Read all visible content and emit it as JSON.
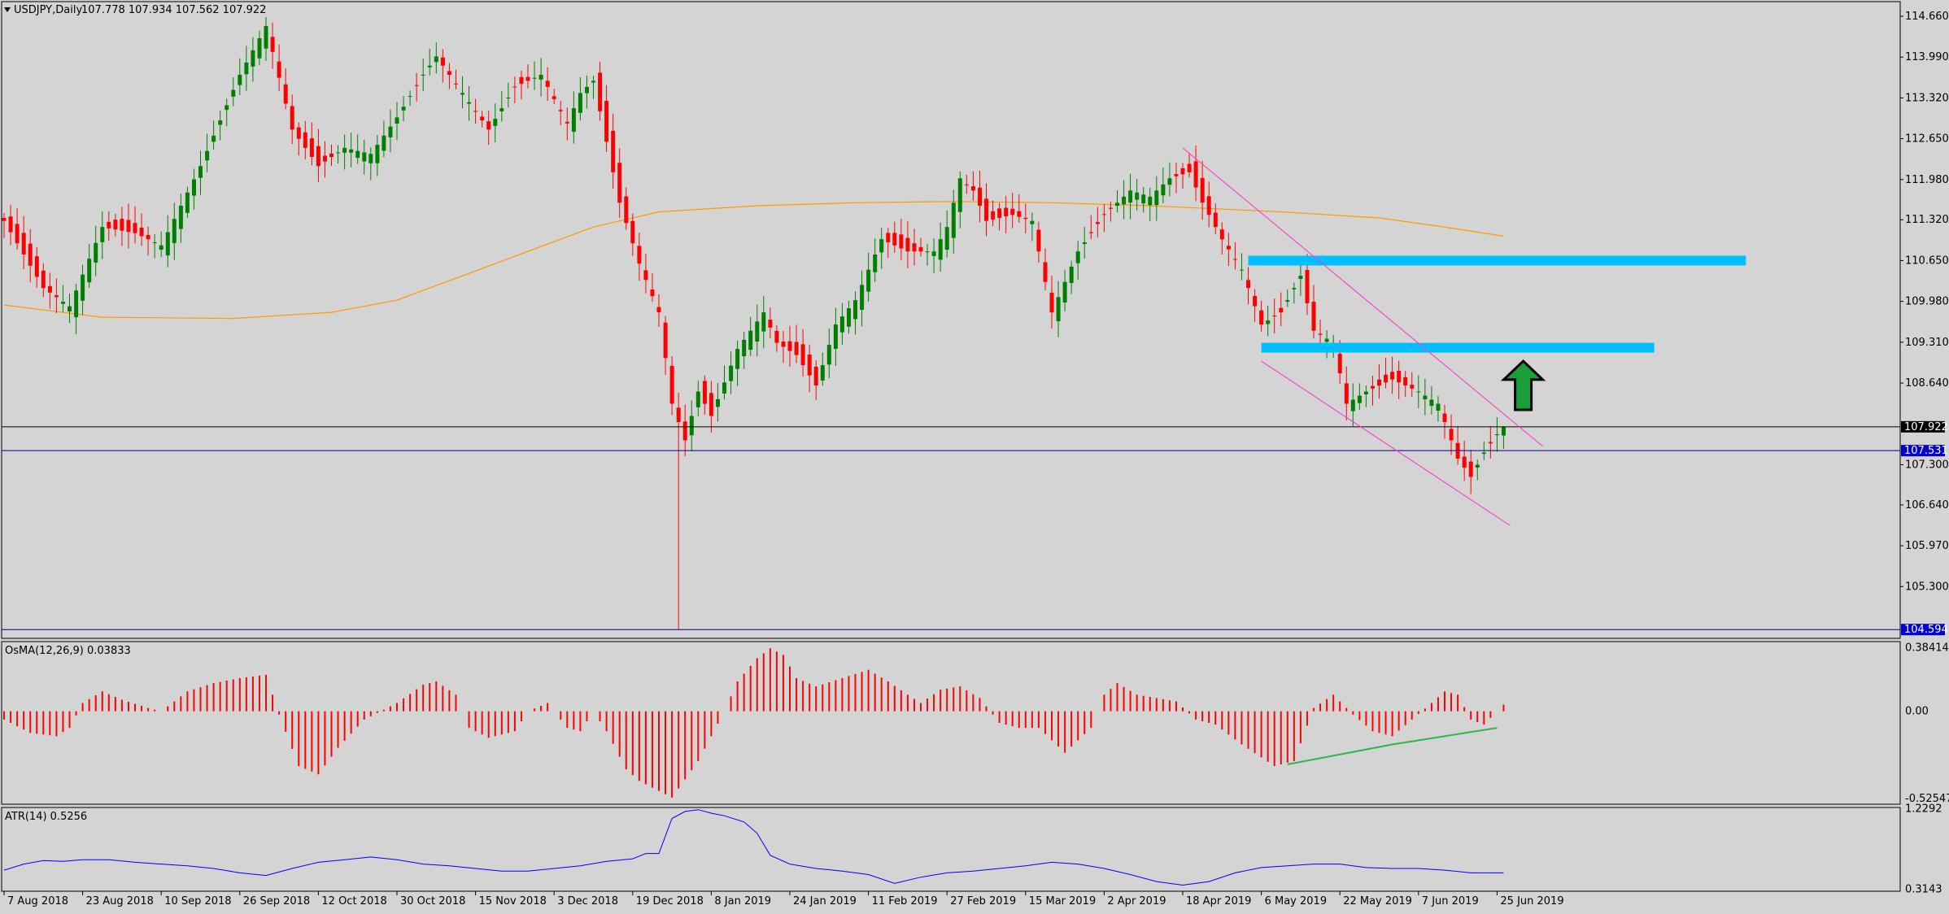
{
  "header": {
    "symbol": "USDJPY,Daily",
    "ohlc": "107.778 107.934 107.562 107.922"
  },
  "colors": {
    "background": "#d4d4d4",
    "bull_candle": "#008000",
    "bear_candle": "#ff0000",
    "ma_line": "#ff9900",
    "channel": "#ff33cc",
    "zone": "#00bfff",
    "arrow": "#1a9e3a",
    "atr_line": "#0000ff",
    "osma_hist": "#ff0000",
    "divergence": "#2db84a",
    "hline_blue": "#000080",
    "hline_black": "#000000"
  },
  "chart_data": [
    {
      "type": "candlestick",
      "title": "USDJPY,Daily",
      "ohlc_label": "107.778 107.934 107.562 107.922",
      "ylim": [
        104.45,
        114.9
      ],
      "y_ticks": [
        "114.660",
        "113.990",
        "113.320",
        "112.650",
        "111.980",
        "111.320",
        "110.650",
        "109.980",
        "109.310",
        "108.640",
        "107.300",
        "106.640",
        "105.970",
        "105.300"
      ],
      "price_tags": [
        {
          "label": "107.922",
          "value": 107.922,
          "style": "current"
        },
        {
          "label": "107.531",
          "value": 107.531,
          "style": "blue"
        },
        {
          "label": "104.594",
          "value": 104.594,
          "style": "blue"
        }
      ],
      "x_ticks": [
        "7 Aug 2018",
        "23 Aug 2018",
        "10 Sep 2018",
        "26 Sep 2018",
        "12 Oct 2018",
        "30 Oct 2018",
        "15 Nov 2018",
        "3 Dec 2018",
        "19 Dec 2018",
        "8 Jan 2019",
        "24 Jan 2019",
        "11 Feb 2019",
        "27 Feb 2019",
        "15 Mar 2019",
        "2 Apr 2019",
        "18 Apr 2019",
        "6 May 2019",
        "22 May 2019",
        "7 Jun 2019",
        "25 Jun 2019"
      ],
      "x_tick_bars": [
        0,
        12,
        24,
        36,
        48,
        60,
        72,
        84,
        96,
        108,
        120,
        132,
        144,
        156,
        168,
        180,
        192,
        204,
        216,
        228
      ],
      "price_path": [
        [
          0,
          111.3
        ],
        [
          6,
          110.2
        ],
        [
          10,
          109.9
        ],
        [
          15,
          111.2
        ],
        [
          20,
          111.1
        ],
        [
          24,
          110.9
        ],
        [
          30,
          112.2
        ],
        [
          36,
          113.7
        ],
        [
          40,
          114.5
        ],
        [
          44,
          112.8
        ],
        [
          48,
          112.2
        ],
        [
          52,
          112.5
        ],
        [
          56,
          112.4
        ],
        [
          60,
          113.0
        ],
        [
          64,
          113.7
        ],
        [
          66,
          114.0
        ],
        [
          70,
          113.4
        ],
        [
          74,
          112.8
        ],
        [
          78,
          113.5
        ],
        [
          82,
          113.7
        ],
        [
          86,
          112.9
        ],
        [
          88,
          113.4
        ],
        [
          90,
          113.6
        ],
        [
          92,
          112.6
        ],
        [
          94,
          111.6
        ],
        [
          97,
          110.6
        ],
        [
          100,
          109.8
        ],
        [
          102,
          108.3
        ],
        [
          104,
          107.7
        ],
        [
          106,
          108.5
        ],
        [
          108,
          108.1
        ],
        [
          112,
          109.2
        ],
        [
          116,
          109.8
        ],
        [
          118,
          109.3
        ],
        [
          121,
          109.1
        ],
        [
          124,
          108.6
        ],
        [
          127,
          109.6
        ],
        [
          130,
          110.0
        ],
        [
          134,
          111.0
        ],
        [
          138,
          110.8
        ],
        [
          142,
          110.8
        ],
        [
          144,
          111.2
        ],
        [
          146,
          112.0
        ],
        [
          148,
          111.8
        ],
        [
          150,
          111.3
        ],
        [
          154,
          111.4
        ],
        [
          157,
          111.3
        ],
        [
          160,
          109.8
        ],
        [
          164,
          110.8
        ],
        [
          168,
          111.4
        ],
        [
          172,
          111.8
        ],
        [
          175,
          111.7
        ],
        [
          178,
          112.0
        ],
        [
          181,
          112.1
        ],
        [
          183,
          111.6
        ],
        [
          186,
          111.0
        ],
        [
          189,
          110.5
        ],
        [
          192,
          109.6
        ],
        [
          195,
          109.8
        ],
        [
          198,
          110.4
        ],
        [
          200,
          109.5
        ],
        [
          203,
          109.3
        ],
        [
          205,
          108.3
        ],
        [
          208,
          108.5
        ],
        [
          212,
          108.7
        ],
        [
          216,
          108.5
        ],
        [
          219,
          108.3
        ],
        [
          222,
          107.4
        ],
        [
          224,
          107.1
        ],
        [
          226,
          107.5
        ],
        [
          228,
          107.8
        ],
        [
          229,
          107.922
        ]
      ],
      "special_wicks": [
        {
          "bar": 103,
          "low": 104.6
        }
      ],
      "ma_line": [
        [
          0,
          109.92
        ],
        [
          15,
          109.72
        ],
        [
          35,
          109.7
        ],
        [
          50,
          109.8
        ],
        [
          60,
          110.0
        ],
        [
          70,
          110.4
        ],
        [
          80,
          110.8
        ],
        [
          90,
          111.2
        ],
        [
          100,
          111.45
        ],
        [
          115,
          111.55
        ],
        [
          130,
          111.6
        ],
        [
          145,
          111.62
        ],
        [
          160,
          111.6
        ],
        [
          175,
          111.55
        ],
        [
          185,
          111.5
        ],
        [
          195,
          111.45
        ],
        [
          210,
          111.35
        ],
        [
          220,
          111.2
        ],
        [
          229,
          111.05
        ]
      ],
      "channel_upper": [
        [
          180,
          112.5
        ],
        [
          235,
          107.6
        ]
      ],
      "channel_lower": [
        [
          192,
          109.0
        ],
        [
          230,
          106.3
        ]
      ],
      "resistance_zones": [
        {
          "from": 190,
          "to": 266,
          "value": 110.65
        },
        {
          "from": 192,
          "to": 252,
          "value": 109.22
        }
      ],
      "hlines": [
        {
          "value": 107.922,
          "style": "black"
        },
        {
          "value": 107.531,
          "style": "blue"
        },
        {
          "value": 104.594,
          "style": "blue"
        }
      ],
      "arrow": {
        "bar": 232,
        "base": 108.2,
        "tip": 109.0,
        "direction": "up"
      }
    },
    {
      "type": "histogram",
      "title": "OsMA(12,26,9) 0.03833",
      "ylim": [
        -0.56,
        0.42
      ],
      "y_ticks": [
        "0.38414",
        "0.00",
        "-0.52547"
      ],
      "osma_path": [
        [
          0,
          -0.05
        ],
        [
          4,
          -0.13
        ],
        [
          8,
          -0.15
        ],
        [
          10,
          -0.1
        ],
        [
          12,
          0.05
        ],
        [
          15,
          0.12
        ],
        [
          18,
          0.07
        ],
        [
          22,
          0.02
        ],
        [
          24,
          0
        ],
        [
          28,
          0.12
        ],
        [
          32,
          0.17
        ],
        [
          36,
          0.2
        ],
        [
          40,
          0.22
        ],
        [
          42,
          -0.02
        ],
        [
          45,
          -0.33
        ],
        [
          48,
          -0.38
        ],
        [
          51,
          -0.22
        ],
        [
          55,
          -0.05
        ],
        [
          60,
          0.05
        ],
        [
          64,
          0.16
        ],
        [
          66,
          0.18
        ],
        [
          69,
          0.1
        ],
        [
          71,
          -0.1
        ],
        [
          74,
          -0.16
        ],
        [
          78,
          -0.12
        ],
        [
          80,
          0
        ],
        [
          83,
          0.05
        ],
        [
          86,
          -0.1
        ],
        [
          88,
          -0.12
        ],
        [
          90,
          0
        ],
        [
          92,
          -0.12
        ],
        [
          95,
          -0.35
        ],
        [
          97,
          -0.42
        ],
        [
          102,
          -0.52
        ],
        [
          106,
          -0.3
        ],
        [
          110,
          0
        ],
        [
          112,
          0.18
        ],
        [
          115,
          0.32
        ],
        [
          117,
          0.38
        ],
        [
          119,
          0.34
        ],
        [
          121,
          0.2
        ],
        [
          124,
          0.15
        ],
        [
          128,
          0.2
        ],
        [
          132,
          0.25
        ],
        [
          135,
          0.18
        ],
        [
          138,
          0.1
        ],
        [
          140,
          0.05
        ],
        [
          143,
          0.13
        ],
        [
          146,
          0.15
        ],
        [
          149,
          0.08
        ],
        [
          152,
          -0.07
        ],
        [
          155,
          -0.1
        ],
        [
          158,
          -0.1
        ],
        [
          162,
          -0.25
        ],
        [
          166,
          -0.1
        ],
        [
          168,
          0.1
        ],
        [
          170,
          0.17
        ],
        [
          173,
          0.1
        ],
        [
          176,
          0.08
        ],
        [
          179,
          0.06
        ],
        [
          182,
          -0.05
        ],
        [
          185,
          -0.08
        ],
        [
          189,
          -0.2
        ],
        [
          194,
          -0.33
        ],
        [
          197,
          -0.3
        ],
        [
          200,
          0.02
        ],
        [
          203,
          0.1
        ],
        [
          206,
          -0.02
        ],
        [
          209,
          -0.12
        ],
        [
          212,
          -0.15
        ],
        [
          215,
          -0.05
        ],
        [
          218,
          0.05
        ],
        [
          220,
          0.12
        ],
        [
          222,
          0.1
        ],
        [
          224,
          -0.05
        ],
        [
          226,
          -0.08
        ],
        [
          229,
          0.04
        ]
      ],
      "divergence_line": [
        [
          196,
          -0.32
        ],
        [
          212,
          -0.2
        ],
        [
          228,
          -0.1
        ]
      ]
    },
    {
      "type": "line",
      "title": "ATR(14) 0.5256",
      "ylim": [
        0.29,
        1.245
      ],
      "y_ticks": [
        "1.2292",
        "0.3143"
      ],
      "atr_path": [
        [
          0,
          0.53
        ],
        [
          3,
          0.6
        ],
        [
          6,
          0.64
        ],
        [
          9,
          0.63
        ],
        [
          12,
          0.65
        ],
        [
          16,
          0.65
        ],
        [
          20,
          0.62
        ],
        [
          24,
          0.6
        ],
        [
          28,
          0.58
        ],
        [
          32,
          0.55
        ],
        [
          36,
          0.5
        ],
        [
          40,
          0.47
        ],
        [
          44,
          0.55
        ],
        [
          48,
          0.62
        ],
        [
          52,
          0.65
        ],
        [
          56,
          0.68
        ],
        [
          60,
          0.65
        ],
        [
          64,
          0.6
        ],
        [
          68,
          0.58
        ],
        [
          72,
          0.55
        ],
        [
          76,
          0.52
        ],
        [
          80,
          0.52
        ],
        [
          84,
          0.55
        ],
        [
          88,
          0.58
        ],
        [
          92,
          0.63
        ],
        [
          96,
          0.66
        ],
        [
          98,
          0.72
        ],
        [
          100,
          0.72
        ],
        [
          102,
          1.12
        ],
        [
          104,
          1.2
        ],
        [
          106,
          1.22
        ],
        [
          108,
          1.18
        ],
        [
          110,
          1.15
        ],
        [
          113,
          1.08
        ],
        [
          115,
          0.95
        ],
        [
          117,
          0.7
        ],
        [
          120,
          0.6
        ],
        [
          124,
          0.55
        ],
        [
          128,
          0.52
        ],
        [
          132,
          0.48
        ],
        [
          136,
          0.38
        ],
        [
          140,
          0.45
        ],
        [
          144,
          0.5
        ],
        [
          148,
          0.52
        ],
        [
          152,
          0.55
        ],
        [
          156,
          0.58
        ],
        [
          160,
          0.62
        ],
        [
          164,
          0.6
        ],
        [
          168,
          0.55
        ],
        [
          172,
          0.48
        ],
        [
          176,
          0.4
        ],
        [
          180,
          0.36
        ],
        [
          184,
          0.4
        ],
        [
          188,
          0.5
        ],
        [
          192,
          0.56
        ],
        [
          196,
          0.58
        ],
        [
          200,
          0.6
        ],
        [
          204,
          0.6
        ],
        [
          208,
          0.56
        ],
        [
          212,
          0.55
        ],
        [
          216,
          0.55
        ],
        [
          220,
          0.53
        ],
        [
          224,
          0.5
        ],
        [
          229,
          0.5
        ]
      ]
    }
  ]
}
